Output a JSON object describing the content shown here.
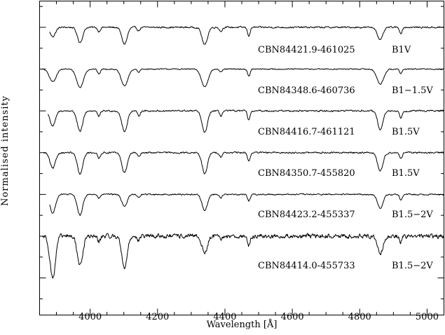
{
  "chart_data": {
    "type": "line",
    "title": "",
    "xlabel": "Wavelength [Å]",
    "ylabel": "Normalised intensity",
    "xlim": [
      3850,
      5050
    ],
    "xticks": [
      4000,
      4200,
      4400,
      4600,
      4800,
      5000
    ],
    "xtick_labels": [
      "4000",
      "4200",
      "4400",
      "4600",
      "4800",
      "5000"
    ],
    "yticks_labeled": false,
    "grid": false,
    "legend": "none",
    "line_color": "#000000",
    "series": [
      {
        "name": "CBN84421.9-461025",
        "spectral_type": "B1V",
        "wavelength_start": 3880,
        "continuum_offset": 5.0,
        "noise": 0.03,
        "lines": [
          [
            3889,
            0.22,
            8
          ],
          [
            3970,
            0.36,
            8
          ],
          [
            4026,
            0.1,
            4
          ],
          [
            4102,
            0.4,
            8
          ],
          [
            4144,
            0.08,
            4
          ],
          [
            4340,
            0.42,
            8
          ],
          [
            4388,
            0.1,
            4
          ],
          [
            4471,
            0.2,
            4
          ],
          [
            4861,
            0.3,
            8
          ],
          [
            4922,
            0.14,
            4
          ]
        ]
      },
      {
        "name": "CBN84348.6-460736",
        "spectral_type": "B1−1.5V",
        "wavelength_start": 3855,
        "continuum_offset": 4.0,
        "noise": 0.02,
        "lines": [
          [
            3889,
            0.3,
            10
          ],
          [
            3970,
            0.44,
            10
          ],
          [
            4026,
            0.12,
            4
          ],
          [
            4102,
            0.4,
            10
          ],
          [
            4144,
            0.08,
            4
          ],
          [
            4340,
            0.42,
            10
          ],
          [
            4388,
            0.08,
            4
          ],
          [
            4471,
            0.16,
            4
          ],
          [
            4861,
            0.36,
            10
          ],
          [
            4922,
            0.1,
            4
          ]
        ]
      },
      {
        "name": "CBN84416.7-461121",
        "spectral_type": "B1.5V",
        "wavelength_start": 3875,
        "continuum_offset": 3.0,
        "noise": 0.03,
        "lines": [
          [
            3889,
            0.36,
            8
          ],
          [
            3970,
            0.5,
            8
          ],
          [
            4026,
            0.14,
            4
          ],
          [
            4102,
            0.5,
            8
          ],
          [
            4144,
            0.12,
            4
          ],
          [
            4340,
            0.52,
            8
          ],
          [
            4388,
            0.12,
            4
          ],
          [
            4471,
            0.22,
            4
          ],
          [
            4861,
            0.44,
            8
          ],
          [
            4922,
            0.16,
            4
          ]
        ]
      },
      {
        "name": "CBN84350.7-455820",
        "spectral_type": "B1.5V",
        "wavelength_start": 3862,
        "continuum_offset": 2.0,
        "noise": 0.03,
        "lines": [
          [
            3889,
            0.38,
            8
          ],
          [
            3970,
            0.52,
            8
          ],
          [
            4026,
            0.14,
            4
          ],
          [
            4102,
            0.48,
            8
          ],
          [
            4144,
            0.1,
            4
          ],
          [
            4340,
            0.5,
            8
          ],
          [
            4388,
            0.1,
            4
          ],
          [
            4471,
            0.2,
            4
          ],
          [
            4861,
            0.44,
            8
          ],
          [
            4922,
            0.14,
            4
          ]
        ]
      },
      {
        "name": "CBN84423.2-455337",
        "spectral_type": "B1.5−2V",
        "wavelength_start": 3880,
        "continuum_offset": 1.0,
        "noise": 0.025,
        "lines": [
          [
            3889,
            0.45,
            8
          ],
          [
            3970,
            0.5,
            8
          ],
          [
            4026,
            0.1,
            4
          ],
          [
            4102,
            0.28,
            8
          ],
          [
            4144,
            0.08,
            4
          ],
          [
            4340,
            0.38,
            8
          ],
          [
            4388,
            0.08,
            4
          ],
          [
            4471,
            0.15,
            4
          ],
          [
            4861,
            0.34,
            8
          ],
          [
            4922,
            0.12,
            4
          ]
        ]
      },
      {
        "name": "CBN84414.0-455733",
        "spectral_type": "B1.5−2V",
        "wavelength_start": 3858,
        "continuum_offset": 0.0,
        "noise": 0.08,
        "lines": [
          [
            3889,
            1.0,
            8
          ],
          [
            3970,
            0.7,
            8
          ],
          [
            4026,
            0.14,
            4
          ],
          [
            4102,
            0.75,
            8
          ],
          [
            4144,
            0.1,
            4
          ],
          [
            4340,
            0.4,
            8
          ],
          [
            4388,
            0.1,
            4
          ],
          [
            4471,
            0.25,
            4
          ],
          [
            4861,
            0.4,
            8
          ],
          [
            4922,
            0.14,
            4
          ]
        ]
      }
    ]
  }
}
